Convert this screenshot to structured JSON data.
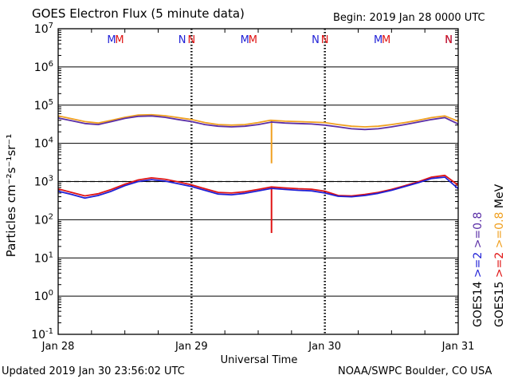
{
  "header": {
    "title": "GOES Electron Flux (5 minute data)",
    "begin": "Begin: 2019 Jan 28 0000 UTC"
  },
  "footer": {
    "updated": "Updated 2019 Jan 30 23:56:02 UTC",
    "credit": "NOAA/SWPC Boulder, CO USA"
  },
  "colors": {
    "goes14_ge2": "#1f1fd6",
    "goes14_ge08": "#5a2ea6",
    "goes15_ge2": "#e01414",
    "goes15_ge08": "#f0a020"
  },
  "chart_data": {
    "type": "line",
    "title": "GOES Electron Flux (5 minute data)",
    "xlabel": "Universal Time",
    "ylabel": "Particles cm⁻²s⁻¹sr⁻¹",
    "y_scale": "log",
    "ylim": [
      0.1,
      10000000
    ],
    "xlim": [
      0,
      3
    ],
    "x_tick_labels": [
      "Jan 28",
      "Jan 29",
      "Jan 30",
      "Jan 31"
    ],
    "y_tick_labels": [
      {
        "base": "10",
        "exp": "7"
      },
      {
        "base": "10",
        "exp": "6"
      },
      {
        "base": "10",
        "exp": "5"
      },
      {
        "base": "10",
        "exp": "4"
      },
      {
        "base": "10",
        "exp": "3"
      },
      {
        "base": "10",
        "exp": "2"
      },
      {
        "base": "10",
        "exp": "1"
      },
      {
        "base": "10",
        "exp": "0"
      },
      {
        "base": "10",
        "exp": "-1"
      }
    ],
    "threshold": 1000,
    "top_markers": [
      {
        "x": 0.4,
        "label": "M",
        "sat": "goes14"
      },
      {
        "x": 0.46,
        "label": "M",
        "sat": "goes15"
      },
      {
        "x": 0.93,
        "label": "N",
        "sat": "goes14"
      },
      {
        "x": 1.0,
        "label": "N",
        "sat": "goes15"
      },
      {
        "x": 1.4,
        "label": "M",
        "sat": "goes14"
      },
      {
        "x": 1.46,
        "label": "M",
        "sat": "goes15"
      },
      {
        "x": 1.93,
        "label": "N",
        "sat": "goes14"
      },
      {
        "x": 2.0,
        "label": "N",
        "sat": "goes15"
      },
      {
        "x": 2.4,
        "label": "M",
        "sat": "goes14"
      },
      {
        "x": 2.46,
        "label": "M",
        "sat": "goes15"
      },
      {
        "x": 2.93,
        "label": "N",
        "sat": "goes14"
      },
      {
        "x": 3.0,
        "label": "N",
        "sat": "goes15"
      }
    ],
    "legend": {
      "left_col": [
        {
          "text": "GOES14",
          "color": "#000000"
        },
        {
          "text": ">=2",
          "color": "#1f1fd6"
        },
        {
          "text": ">=0.8",
          "color": "#5a2ea6"
        }
      ],
      "right_col": [
        {
          "text": "GOES15",
          "color": "#000000"
        },
        {
          "text": ">=2",
          "color": "#e01414"
        },
        {
          "text": ">=0.8",
          "color": "#f0a020"
        },
        {
          "text": "MeV",
          "color": "#000000"
        }
      ]
    },
    "series": [
      {
        "key": "goes15_ge08",
        "color": "#f0a020",
        "x": [
          0,
          0.1,
          0.2,
          0.3,
          0.4,
          0.5,
          0.6,
          0.7,
          0.8,
          0.9,
          1.0,
          1.1,
          1.2,
          1.3,
          1.4,
          1.5,
          1.59,
          1.6,
          1.7,
          1.8,
          1.9,
          2.0,
          2.1,
          2.2,
          2.3,
          2.4,
          2.5,
          2.6,
          2.7,
          2.8,
          2.9,
          3.0
        ],
        "y": [
          52000,
          44000,
          37000,
          34000,
          40000,
          48000,
          55000,
          56000,
          53000,
          47000,
          42000,
          35000,
          31000,
          30000,
          31000,
          35000,
          40000,
          40000,
          38000,
          37000,
          36000,
          35000,
          31000,
          28000,
          27000,
          28000,
          31000,
          35000,
          40000,
          47000,
          52000,
          38000
        ],
        "spikes": [
          {
            "x": 1.6,
            "y": 3000
          }
        ]
      },
      {
        "key": "goes14_ge08",
        "color": "#5a2ea6",
        "x": [
          0,
          0.1,
          0.2,
          0.3,
          0.4,
          0.5,
          0.6,
          0.7,
          0.8,
          0.9,
          1.0,
          1.1,
          1.2,
          1.3,
          1.4,
          1.5,
          1.6,
          1.7,
          1.8,
          1.9,
          2.0,
          2.1,
          2.2,
          2.3,
          2.4,
          2.5,
          2.6,
          2.7,
          2.8,
          2.9,
          3.0
        ],
        "y": [
          46000,
          39000,
          33000,
          31000,
          37000,
          45000,
          51000,
          52000,
          48000,
          42000,
          37000,
          31000,
          28000,
          27000,
          28000,
          31000,
          36000,
          34000,
          33000,
          32000,
          30000,
          27000,
          24000,
          23000,
          24000,
          27000,
          31000,
          36000,
          42000,
          47000,
          32000
        ]
      },
      {
        "key": "goes15_ge2",
        "color": "#e01414",
        "x": [
          0,
          0.1,
          0.2,
          0.3,
          0.4,
          0.5,
          0.6,
          0.7,
          0.8,
          0.9,
          1.0,
          1.1,
          1.2,
          1.3,
          1.4,
          1.5,
          1.6,
          1.7,
          1.8,
          1.9,
          2.0,
          2.1,
          2.2,
          2.3,
          2.4,
          2.5,
          2.6,
          2.7,
          2.8,
          2.9,
          3.0
        ],
        "y": [
          640,
          520,
          420,
          480,
          620,
          850,
          1100,
          1250,
          1150,
          980,
          820,
          650,
          520,
          500,
          540,
          620,
          720,
          680,
          650,
          630,
          560,
          430,
          420,
          460,
          520,
          620,
          780,
          980,
          1300,
          1450,
          800
        ],
        "spikes": [
          {
            "x": 1.6,
            "y": 45
          }
        ]
      },
      {
        "key": "goes14_ge2",
        "color": "#1f1fd6",
        "x": [
          0,
          0.1,
          0.2,
          0.3,
          0.4,
          0.5,
          0.6,
          0.7,
          0.8,
          0.9,
          1.0,
          1.1,
          1.2,
          1.3,
          1.4,
          1.5,
          1.6,
          1.7,
          1.8,
          1.9,
          2.0,
          2.1,
          2.2,
          2.3,
          2.4,
          2.5,
          2.6,
          2.7,
          2.8,
          2.9,
          3.0
        ],
        "y": [
          560,
          460,
          370,
          430,
          560,
          780,
          1000,
          1120,
          1030,
          880,
          740,
          590,
          470,
          450,
          490,
          570,
          660,
          620,
          590,
          570,
          500,
          410,
          400,
          430,
          490,
          590,
          740,
          930,
          1200,
          1300,
          650
        ]
      }
    ]
  }
}
